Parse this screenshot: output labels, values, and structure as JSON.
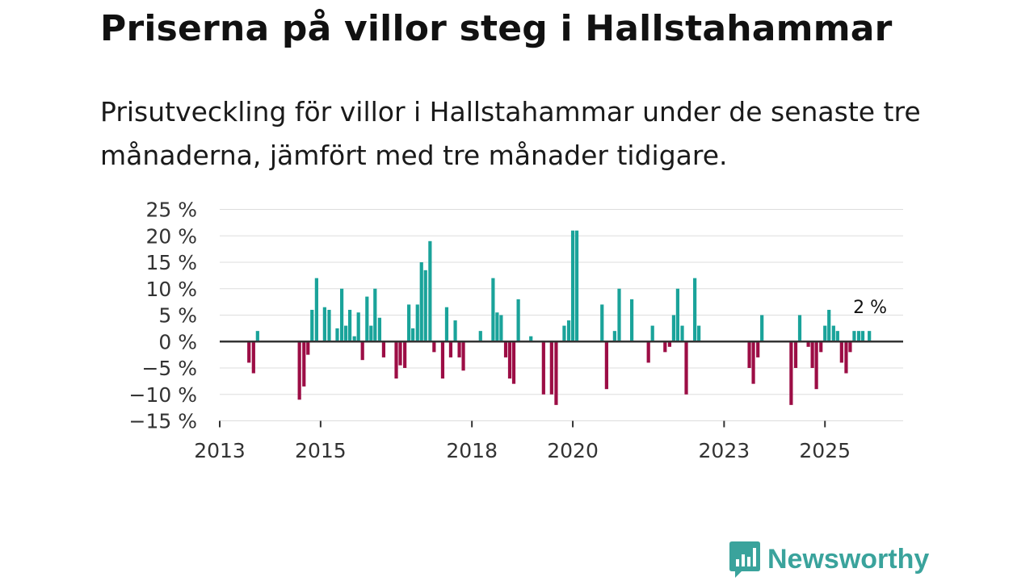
{
  "header": {
    "title": "Priserna på villor steg i Hallstahammar",
    "subtitle": "Prisutveckling för villor i Hallstahammar under de senaste tre månaderna, jämfört med tre månader tidigare."
  },
  "brand": {
    "name": "Newsworthy",
    "color": "#3aa39c"
  },
  "colors": {
    "positive": "#1aa39a",
    "negative": "#9c0d45",
    "zero_line": "#333333",
    "grid": "#dddddd"
  },
  "chart_data": {
    "type": "bar",
    "title": "Priserna på villor steg i Hallstahammar",
    "xlabel": "",
    "ylabel": "",
    "ylim": [
      -15,
      25
    ],
    "y_ticks": [
      25,
      20,
      15,
      10,
      5,
      0,
      -5,
      -10,
      -15
    ],
    "y_tick_labels": [
      "25 %",
      "20 %",
      "15 %",
      "10 %",
      "5 %",
      "0 %",
      "−5 %",
      "−10 %",
      "−15 %"
    ],
    "x_ticks": [
      2013,
      2015,
      2018,
      2020,
      2023,
      2025
    ],
    "x_tick_labels": [
      "2013",
      "2015",
      "2018",
      "2020",
      "2023",
      "2025"
    ],
    "x_range": [
      2013,
      2026.55
    ],
    "annotation": {
      "text": "2 %",
      "x": 2025.88,
      "y": 2
    },
    "series": [
      {
        "name": "Prisutveckling",
        "x": [
          2013.58,
          2013.67,
          2013.75,
          2014.58,
          2014.67,
          2014.75,
          2014.83,
          2014.92,
          2015.08,
          2015.17,
          2015.33,
          2015.42,
          2015.5,
          2015.58,
          2015.67,
          2015.75,
          2015.83,
          2015.92,
          2016.0,
          2016.08,
          2016.17,
          2016.25,
          2016.5,
          2016.58,
          2016.67,
          2016.75,
          2016.83,
          2016.92,
          2017.0,
          2017.08,
          2017.17,
          2017.25,
          2017.42,
          2017.5,
          2017.58,
          2017.67,
          2017.75,
          2017.83,
          2018.17,
          2018.42,
          2018.5,
          2018.58,
          2018.67,
          2018.75,
          2018.83,
          2018.92,
          2019.17,
          2019.42,
          2019.58,
          2019.67,
          2019.83,
          2019.92,
          2020.0,
          2020.08,
          2020.58,
          2020.67,
          2020.83,
          2020.92,
          2021.17,
          2021.5,
          2021.58,
          2021.83,
          2021.92,
          2022.0,
          2022.08,
          2022.17,
          2022.25,
          2022.42,
          2022.5,
          2023.5,
          2023.58,
          2023.67,
          2023.75,
          2024.33,
          2024.42,
          2024.5,
          2024.67,
          2024.75,
          2024.83,
          2024.92,
          2025.0,
          2025.08,
          2025.17,
          2025.25,
          2025.33,
          2025.42,
          2025.5,
          2025.58,
          2025.67,
          2025.75,
          2025.88
        ],
        "values": [
          -4,
          -6,
          2,
          -11,
          -8.5,
          -2.5,
          6,
          12,
          6.5,
          6,
          2.5,
          10,
          3,
          6,
          1,
          5.5,
          -3.5,
          8.5,
          3,
          10,
          4.5,
          -3,
          -7,
          -4.5,
          -5,
          7,
          2.5,
          7,
          15,
          13.5,
          19,
          -2,
          -7,
          6.5,
          -3,
          4,
          -3,
          -5.5,
          2,
          12,
          5.5,
          5,
          -3,
          -7,
          -8,
          8,
          1,
          -10,
          -10,
          -12,
          3,
          4,
          21,
          21,
          7,
          -9,
          2,
          10,
          8,
          -4,
          3,
          -2,
          -1,
          5,
          10,
          3,
          -10,
          12,
          3,
          -5,
          -8,
          -3,
          5,
          -12,
          -5,
          5,
          -1,
          -5,
          -9,
          -2,
          3,
          6,
          3,
          2,
          -4,
          -6,
          -2,
          2,
          2,
          2,
          2
        ]
      }
    ]
  }
}
